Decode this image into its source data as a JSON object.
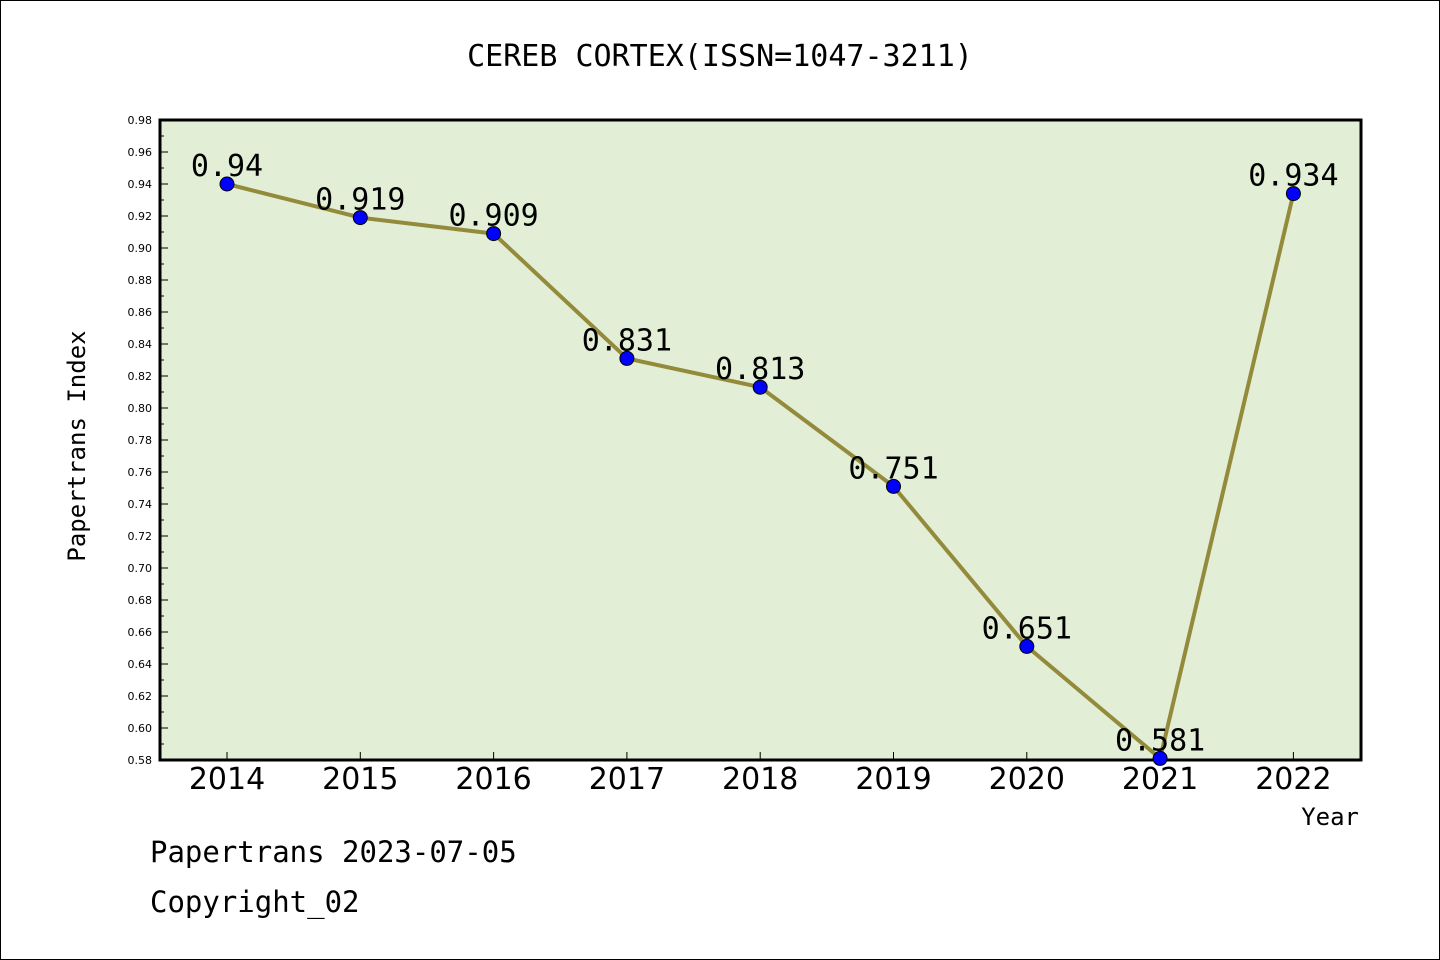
{
  "chart_data": {
    "type": "line",
    "title": "CEREB CORTEX(ISSN=1047-3211)",
    "xlabel": "Year",
    "ylabel": "Papertrans Index",
    "categories": [
      "2014",
      "2015",
      "2016",
      "2017",
      "2018",
      "2019",
      "2020",
      "2021",
      "2022"
    ],
    "series": [
      {
        "values": [
          0.94,
          0.919,
          0.909,
          0.831,
          0.813,
          0.751,
          0.651,
          0.581,
          0.934
        ],
        "data_labels": [
          "0.94",
          "0.919",
          "0.909",
          "0.831",
          "0.813",
          "0.751",
          "0.651",
          "0.581",
          "0.934"
        ]
      }
    ],
    "ylim": [
      0.58,
      0.98
    ],
    "yticks": [
      "0.58",
      "0.60",
      "0.62",
      "0.64",
      "0.66",
      "0.68",
      "0.70",
      "0.72",
      "0.74",
      "0.76",
      "0.78",
      "0.80",
      "0.82",
      "0.84",
      "0.86",
      "0.88",
      "0.90",
      "0.92",
      "0.94",
      "0.96",
      "0.98"
    ],
    "grid": false,
    "legend": "none",
    "colors": {
      "plot_background": "#e2efd6",
      "line": "#938b3b",
      "marker": "#0000ff"
    }
  },
  "footer": {
    "line1": "Papertrans 2023-07-05",
    "line2": "Copyright_02"
  }
}
